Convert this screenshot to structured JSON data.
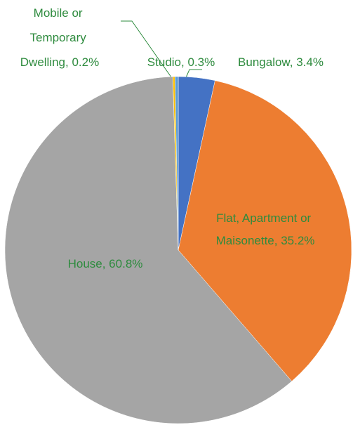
{
  "chart_data": {
    "type": "pie",
    "values": [
      3.4,
      35.2,
      60.8,
      0.2,
      0.3
    ],
    "value_labels": [
      "Bungalow, 3.4%",
      "Flat, Apartment or Maisonette, 35.2%",
      "House, 60.8%",
      "Mobile or Temporary Dwelling, 0.2%",
      "Studio, 0.3%"
    ],
    "colors": [
      "#4472c4",
      "#ed7d31",
      "#a5a5a5",
      "#ffc000",
      "#5b9bd5"
    ]
  }
}
